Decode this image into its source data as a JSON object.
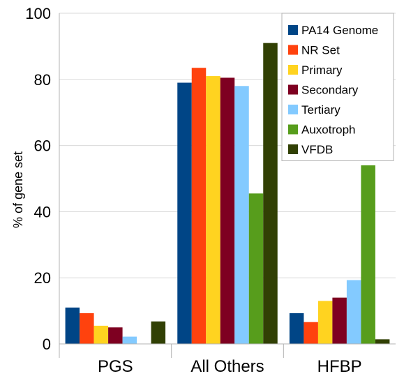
{
  "chart_data": {
    "type": "bar",
    "categories": [
      "PGS",
      "All Others",
      "HFBP"
    ],
    "series": [
      {
        "name": "PA14 Genome",
        "color": "#004586",
        "values": [
          11,
          79,
          9.3
        ]
      },
      {
        "name": "NR Set",
        "color": "#ff420e",
        "values": [
          9.3,
          83.5,
          6.6
        ]
      },
      {
        "name": "Primary",
        "color": "#ffd320",
        "values": [
          5.5,
          81,
          13
        ]
      },
      {
        "name": "Secondary",
        "color": "#7e0021",
        "values": [
          5,
          80.5,
          14
        ]
      },
      {
        "name": "Tertiary",
        "color": "#83caff",
        "values": [
          2.2,
          78,
          19.3
        ]
      },
      {
        "name": "Auxotroph",
        "color": "#579d1c",
        "values": [
          0,
          45.5,
          54
        ]
      },
      {
        "name": "VFDB",
        "color": "#314004",
        "values": [
          6.8,
          91,
          1.4
        ]
      }
    ],
    "xlabel": "",
    "ylabel": "% of gene set",
    "ylim": [
      0,
      100
    ],
    "yticks": [
      0,
      20,
      40,
      60,
      80,
      100
    ],
    "grid": true,
    "legend": "top-right"
  }
}
